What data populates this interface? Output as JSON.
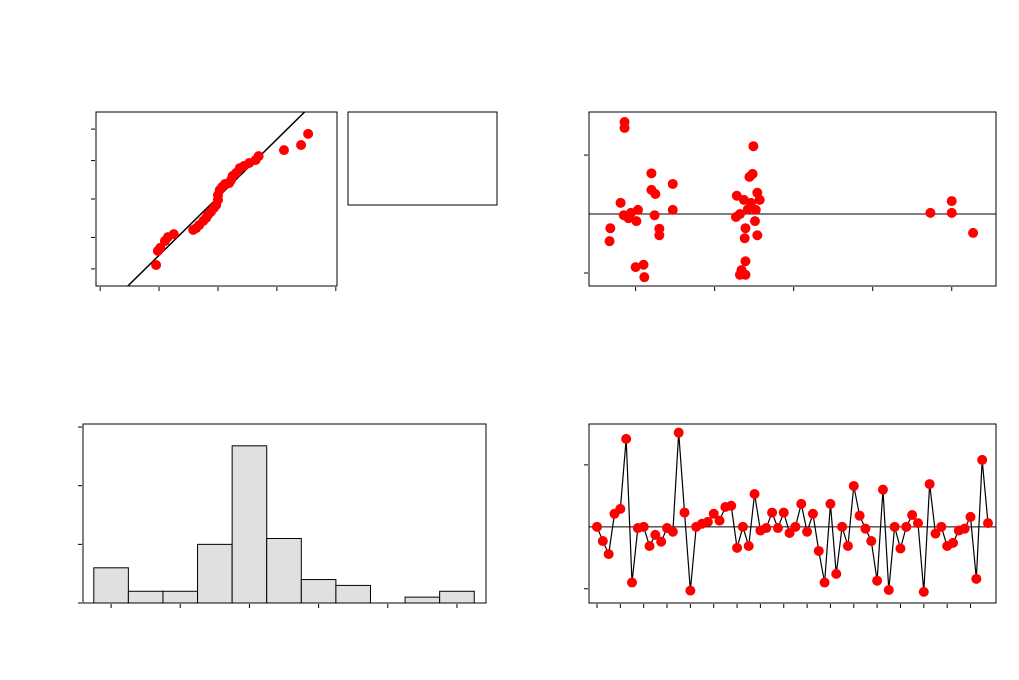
{
  "chart_data": [
    {
      "type": "scatter",
      "color": "#ff0000",
      "x": [
        -1.05,
        -1.02,
        -0.98,
        -0.9,
        -0.85,
        -0.75,
        -0.42,
        -0.37,
        -0.32,
        -0.25,
        -0.2,
        -0.17,
        -0.12,
        -0.07,
        -0.03,
        0,
        0,
        0.03,
        0.07,
        0.12,
        0.19,
        0.22,
        0.25,
        0.31,
        0.37,
        0.44,
        0.53,
        0.64,
        0.69,
        1.12,
        1.41,
        1.53
      ],
      "values": [
        -2.2,
        -1.73,
        -1.63,
        -1.4,
        -1.27,
        -1.17,
        -1.03,
        -0.97,
        -0.87,
        -0.73,
        -0.63,
        -0.53,
        -0.43,
        -0.3,
        -0.2,
        -0.03,
        0.13,
        0.3,
        0.4,
        0.5,
        0.53,
        0.63,
        0.77,
        0.87,
        1.03,
        1.1,
        1.2,
        1.3,
        1.43,
        1.63,
        1.8,
        2.17
      ],
      "fit_line": {
        "x": [
          -1.53,
          1.47
        ],
        "y": [
          -2.9,
          2.9
        ]
      },
      "xlim": [
        -2.07,
        2.02
      ],
      "xticks": [
        -2,
        -1,
        0,
        1,
        2
      ],
      "ylim": [
        -2.9,
        2.9
      ],
      "yticks": [
        -2.33,
        -1.28,
        0,
        1.28,
        2.33
      ]
    },
    {
      "type": "scatter",
      "color": "#ff0000",
      "x": [
        0.86,
        0.86,
        1.2,
        1.47,
        1.2,
        1.25,
        0.81,
        1.03,
        0.85,
        0.94,
        0.91,
        1.01,
        1.24,
        1.47,
        0.68,
        1.3,
        1.3,
        0.67,
        1.0,
        1.1,
        1.11,
        2.49,
        2.48,
        2.44,
        2.28,
        2.54,
        2.37,
        2.57,
        2.46,
        2.52,
        2.42,
        2.32,
        2.27,
        2.51,
        2.39,
        2.54,
        2.38,
        2.39,
        2.34,
        2.39,
        2.32,
        4.73,
        5.0,
        5.0,
        5.27
      ],
      "values": [
        1.56,
        1.46,
        0.69,
        0.51,
        0.41,
        0.34,
        0.19,
        0.07,
        -0.02,
        0.02,
        -0.07,
        -0.12,
        -0.02,
        0.07,
        -0.24,
        -0.25,
        -0.36,
        -0.46,
        -0.9,
        -0.86,
        -1.07,
        1.15,
        0.68,
        0.63,
        0.31,
        0.36,
        0.24,
        0.24,
        0.19,
        0.07,
        0.08,
        0,
        -0.05,
        -0.12,
        -0.24,
        -0.36,
        -0.41,
        -0.8,
        -0.95,
        -1.03,
        -1.03,
        0.02,
        0.22,
        0.02,
        -0.32
      ],
      "hline": 0,
      "xlim": [
        0.41,
        5.56
      ],
      "xticks": [
        1,
        2,
        3,
        4,
        5
      ],
      "ylim": [
        -1.22,
        1.73
      ],
      "yticks": [
        -1,
        1
      ]
    },
    {
      "type": "histogram",
      "color": "#e0e0e0",
      "bins": [
        -2.75,
        -2.25,
        -1.75,
        -1.25,
        -0.75,
        -0.25,
        0.25,
        0.75,
        1.25,
        1.75,
        2.25,
        2.75
      ],
      "values": [
        3,
        1,
        1,
        5,
        13.4,
        5.5,
        2,
        1.5,
        0,
        0.5,
        1
      ],
      "xlim": [
        -2.906,
        2.92
      ],
      "xticks": [
        -2.5,
        -1.5,
        -0.5,
        0.5,
        1.5,
        2.5
      ],
      "ylim": [
        0,
        15.26
      ],
      "yticks": [
        0,
        5,
        10,
        15
      ]
    },
    {
      "type": "line",
      "color": "#ff0000",
      "x": [
        1,
        2,
        3,
        4,
        5,
        6,
        7,
        8,
        9,
        10,
        11,
        12,
        13,
        14,
        15,
        16,
        17,
        18,
        19,
        20,
        21,
        22,
        23,
        24,
        25,
        26,
        27,
        28,
        29,
        30,
        31,
        32,
        33,
        34,
        35,
        36,
        37,
        38,
        39,
        40,
        41,
        42,
        43,
        44,
        45,
        46,
        47,
        48,
        49,
        50,
        51,
        52,
        53,
        54,
        55,
        56,
        57,
        58,
        59,
        60,
        61,
        62,
        63,
        64,
        65,
        66,
        67,
        68
      ],
      "values": [
        0,
        -0.23,
        -0.44,
        0.21,
        0.29,
        1.42,
        -0.9,
        -0.02,
        0,
        -0.31,
        -0.13,
        -0.24,
        -0.02,
        -0.08,
        1.52,
        0.23,
        -1.03,
        0,
        0.05,
        0.08,
        0.21,
        0.1,
        0.32,
        0.34,
        -0.34,
        0,
        -0.31,
        0.53,
        -0.06,
        -0.02,
        0.23,
        -0.02,
        0.23,
        -0.1,
        0,
        0.37,
        -0.08,
        0.21,
        -0.39,
        -0.9,
        0.37,
        -0.76,
        0,
        -0.31,
        0.66,
        0.18,
        -0.03,
        -0.23,
        -0.87,
        0.6,
        -1.02,
        0,
        -0.35,
        0,
        0.19,
        0.06,
        -1.05,
        0.69,
        -0.11,
        0,
        -0.31,
        -0.26,
        -0.06,
        -0.03,
        0.16,
        -0.84,
        1.08,
        0.06
      ],
      "hline": 0,
      "xlim": [
        -0.37,
        69.37
      ],
      "xticks": [
        1,
        5,
        9,
        13,
        17,
        21,
        25,
        29,
        33,
        37,
        41,
        45,
        49,
        53,
        57,
        61,
        65
      ],
      "ylim": [
        -1.23,
        1.66
      ],
      "yticks": [
        -1,
        1
      ]
    }
  ]
}
